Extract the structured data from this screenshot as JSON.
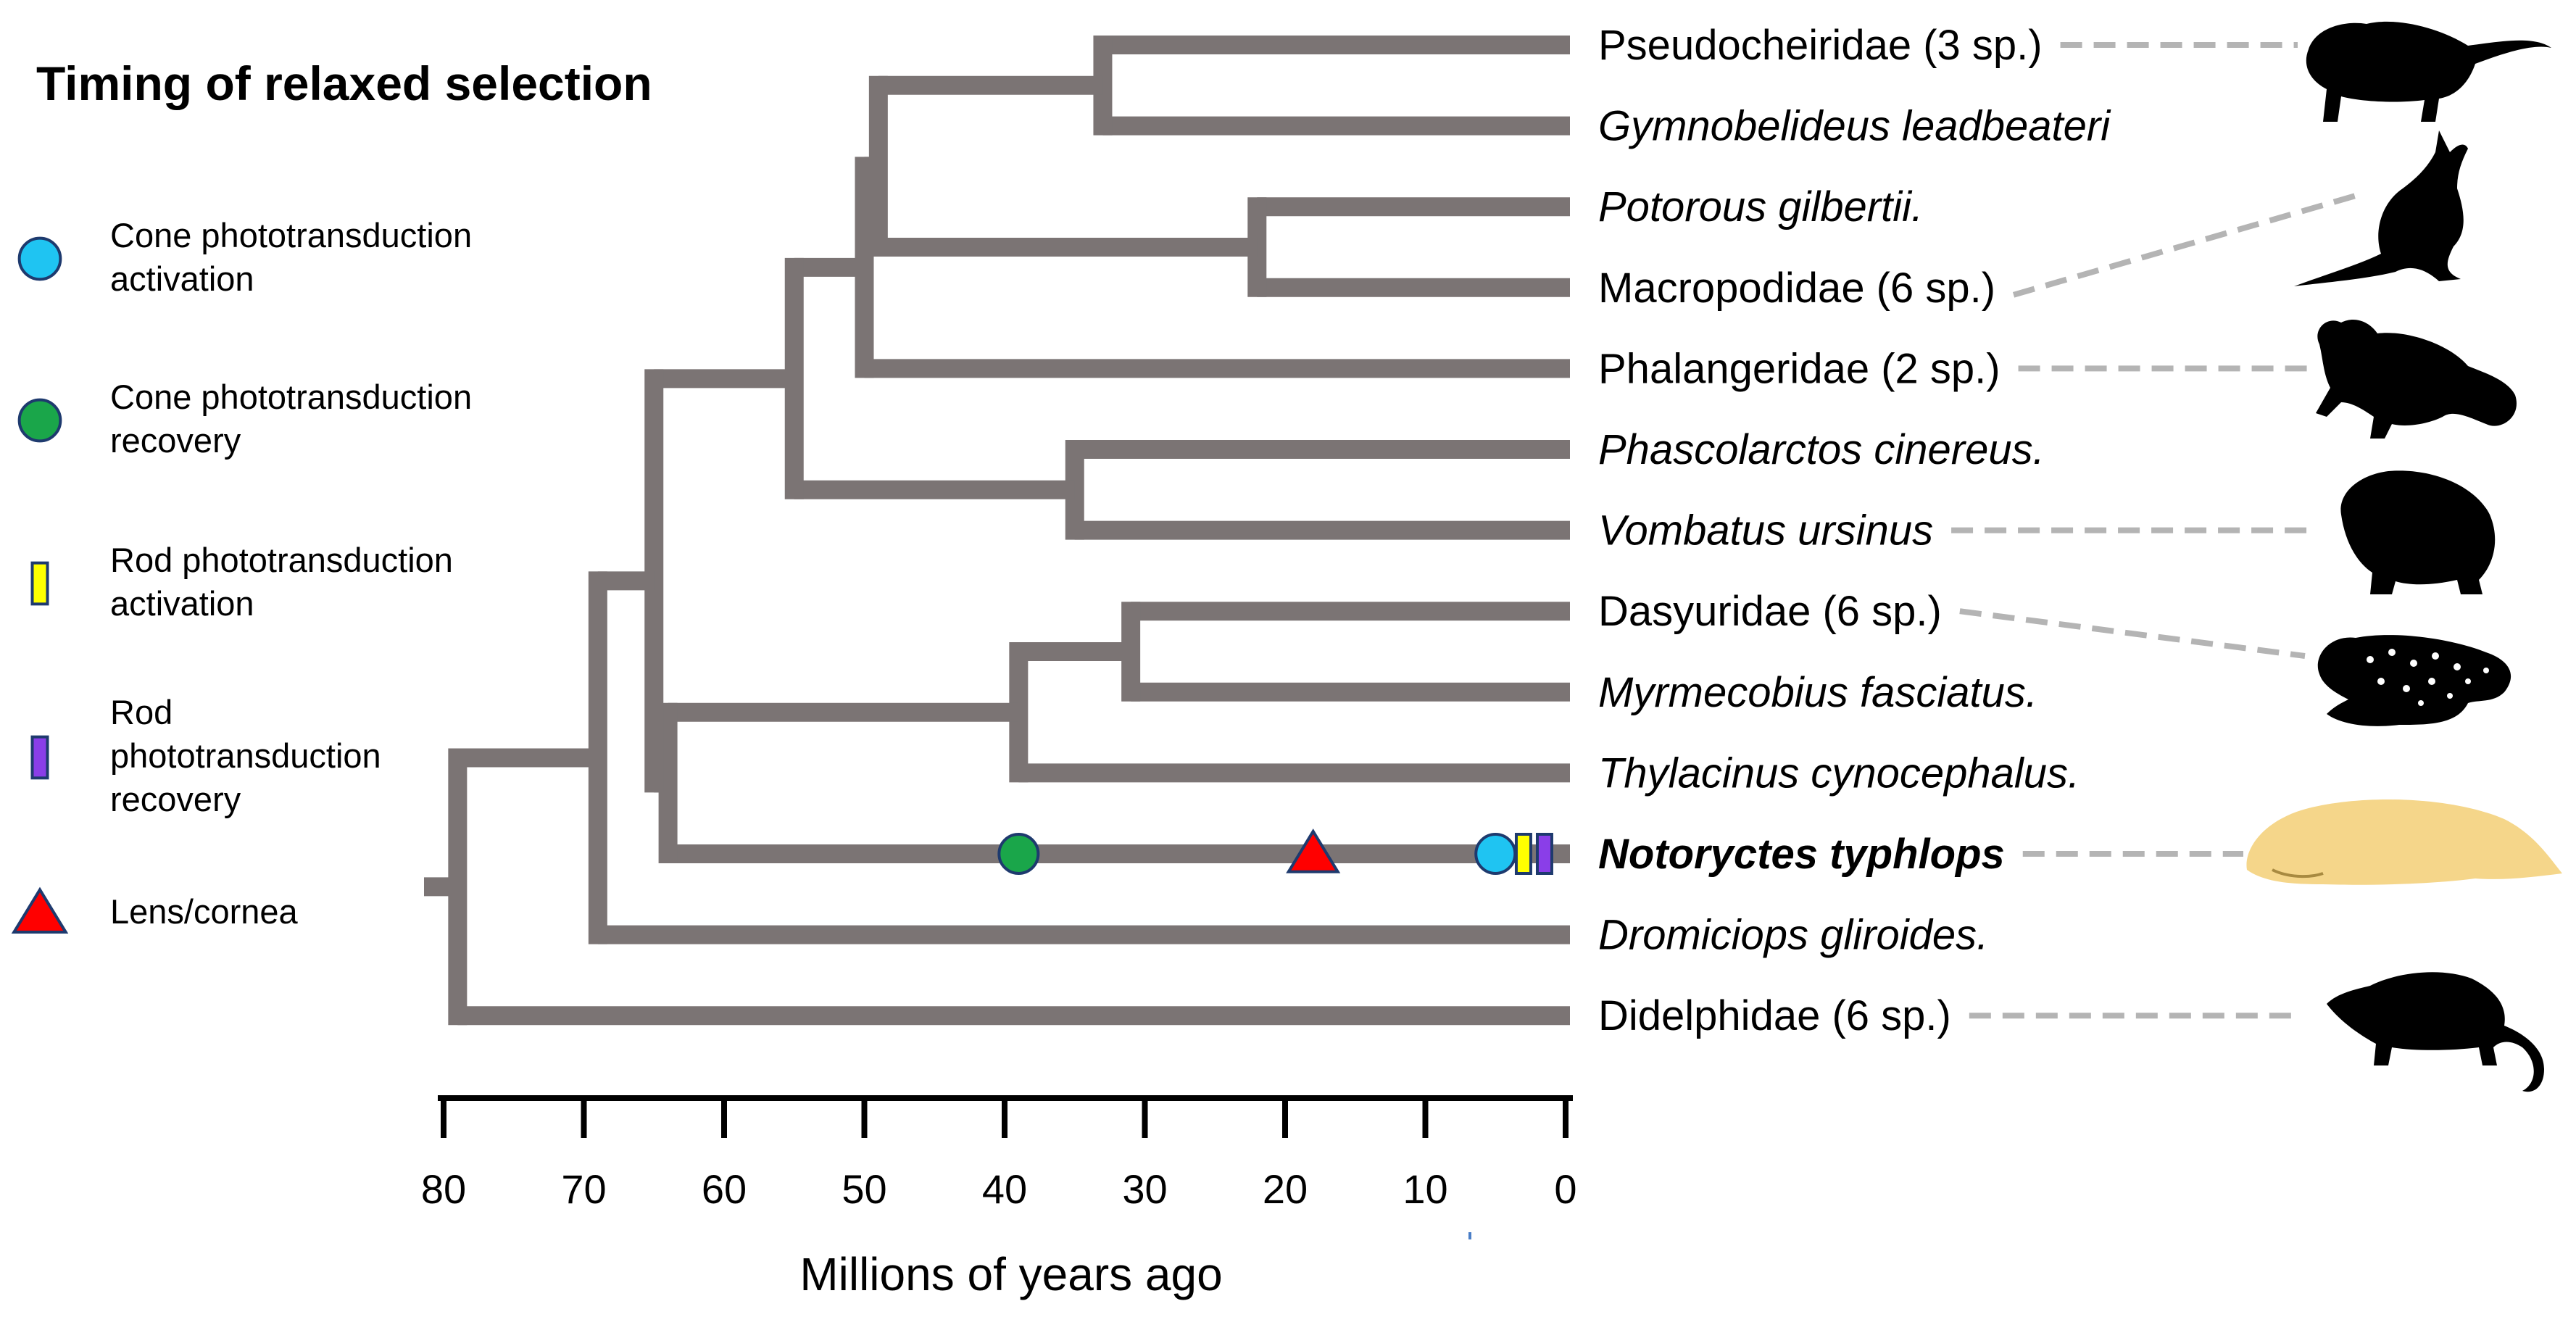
{
  "title": "Timing of relaxed selection",
  "legend": [
    {
      "key": "cone_activation",
      "shape": "circle",
      "color": "#1fc4f2",
      "label_lines": [
        "Cone phototransduction",
        "activation"
      ]
    },
    {
      "key": "cone_recovery",
      "shape": "circle",
      "color": "#1aa64a",
      "label_lines": [
        "Cone phototransduction",
        "recovery"
      ]
    },
    {
      "key": "rod_activation",
      "shape": "bar",
      "color": "#ffff00",
      "label_lines": [
        "Rod phototransduction",
        "activation"
      ]
    },
    {
      "key": "rod_recovery",
      "shape": "bar",
      "color": "#8a3ee8",
      "label_lines": [
        "Rod",
        "phototransduction",
        "recovery"
      ]
    },
    {
      "key": "lens_cornea",
      "shape": "triangle",
      "color": "#ff0000",
      "label_lines": [
        "Lens/cornea"
      ]
    }
  ],
  "taxa": [
    {
      "label": "Pseudocheiridae (3 sp.)",
      "italic": false,
      "bold": false,
      "icon": "possum-silhouette-icon"
    },
    {
      "label": "Gymnobelideus leadbeateri",
      "italic": true,
      "bold": false,
      "icon": null
    },
    {
      "label": "Potorous gilbertii.",
      "italic": true,
      "bold": false,
      "icon": null
    },
    {
      "label": "Macropodidae (6 sp.)",
      "italic": false,
      "bold": false,
      "icon": "kangaroo-silhouette-icon"
    },
    {
      "label": "Phalangeridae (2 sp.)",
      "italic": false,
      "bold": false,
      "icon": "cuscus-silhouette-icon"
    },
    {
      "label": "Phascolarctos cinereus.",
      "italic": true,
      "bold": false,
      "icon": null
    },
    {
      "label": "Vombatus ursinus",
      "italic": true,
      "bold": false,
      "icon": "wombat-silhouette-icon"
    },
    {
      "label": "Dasyuridae (6 sp.)",
      "italic": false,
      "bold": false,
      "icon": "quoll-silhouette-icon"
    },
    {
      "label": "Myrmecobius fasciatus.",
      "italic": true,
      "bold": false,
      "icon": null
    },
    {
      "label": "Thylacinus cynocephalus.",
      "italic": true,
      "bold": false,
      "icon": null
    },
    {
      "label": "Notoryctes typhlops",
      "italic": true,
      "bold": true,
      "icon": "marsupial-mole-icon"
    },
    {
      "label": "Dromiciops gliroides.",
      "italic": true,
      "bold": false,
      "icon": null
    },
    {
      "label": "Didelphidae (6 sp.)",
      "italic": false,
      "bold": false,
      "icon": "opossum-silhouette-icon"
    }
  ],
  "node_ages_mya": {
    "root": 79,
    "australidelphia": 69,
    "australian_marsupials": 65,
    "dasyuromorphia_notoryctes": 64,
    "dasyuromorphia": 39,
    "dasyurid_numbat": 31,
    "diprotodontia": 55,
    "phalangerida": 50,
    "petauroid_macropod": 49,
    "petauroidea": 33,
    "macropodoidea": 22,
    "vombatiformes": 35
  },
  "events_on_notoryctes_branch": [
    {
      "key": "cone_recovery",
      "age_mya": 39
    },
    {
      "key": "lens_cornea",
      "age_mya": 18
    },
    {
      "key": "cone_activation",
      "age_mya": 5
    },
    {
      "key": "rod_activation",
      "age_mya": 3
    },
    {
      "key": "rod_recovery",
      "age_mya": 1.5
    }
  ],
  "axis": {
    "title": "Millions of years ago",
    "ticks": [
      80,
      70,
      60,
      50,
      40,
      30,
      20,
      10,
      0
    ]
  },
  "colors": {
    "branch": "#7b7474",
    "connector": "#b4b4b4",
    "mole_body": "#f5d68a"
  }
}
